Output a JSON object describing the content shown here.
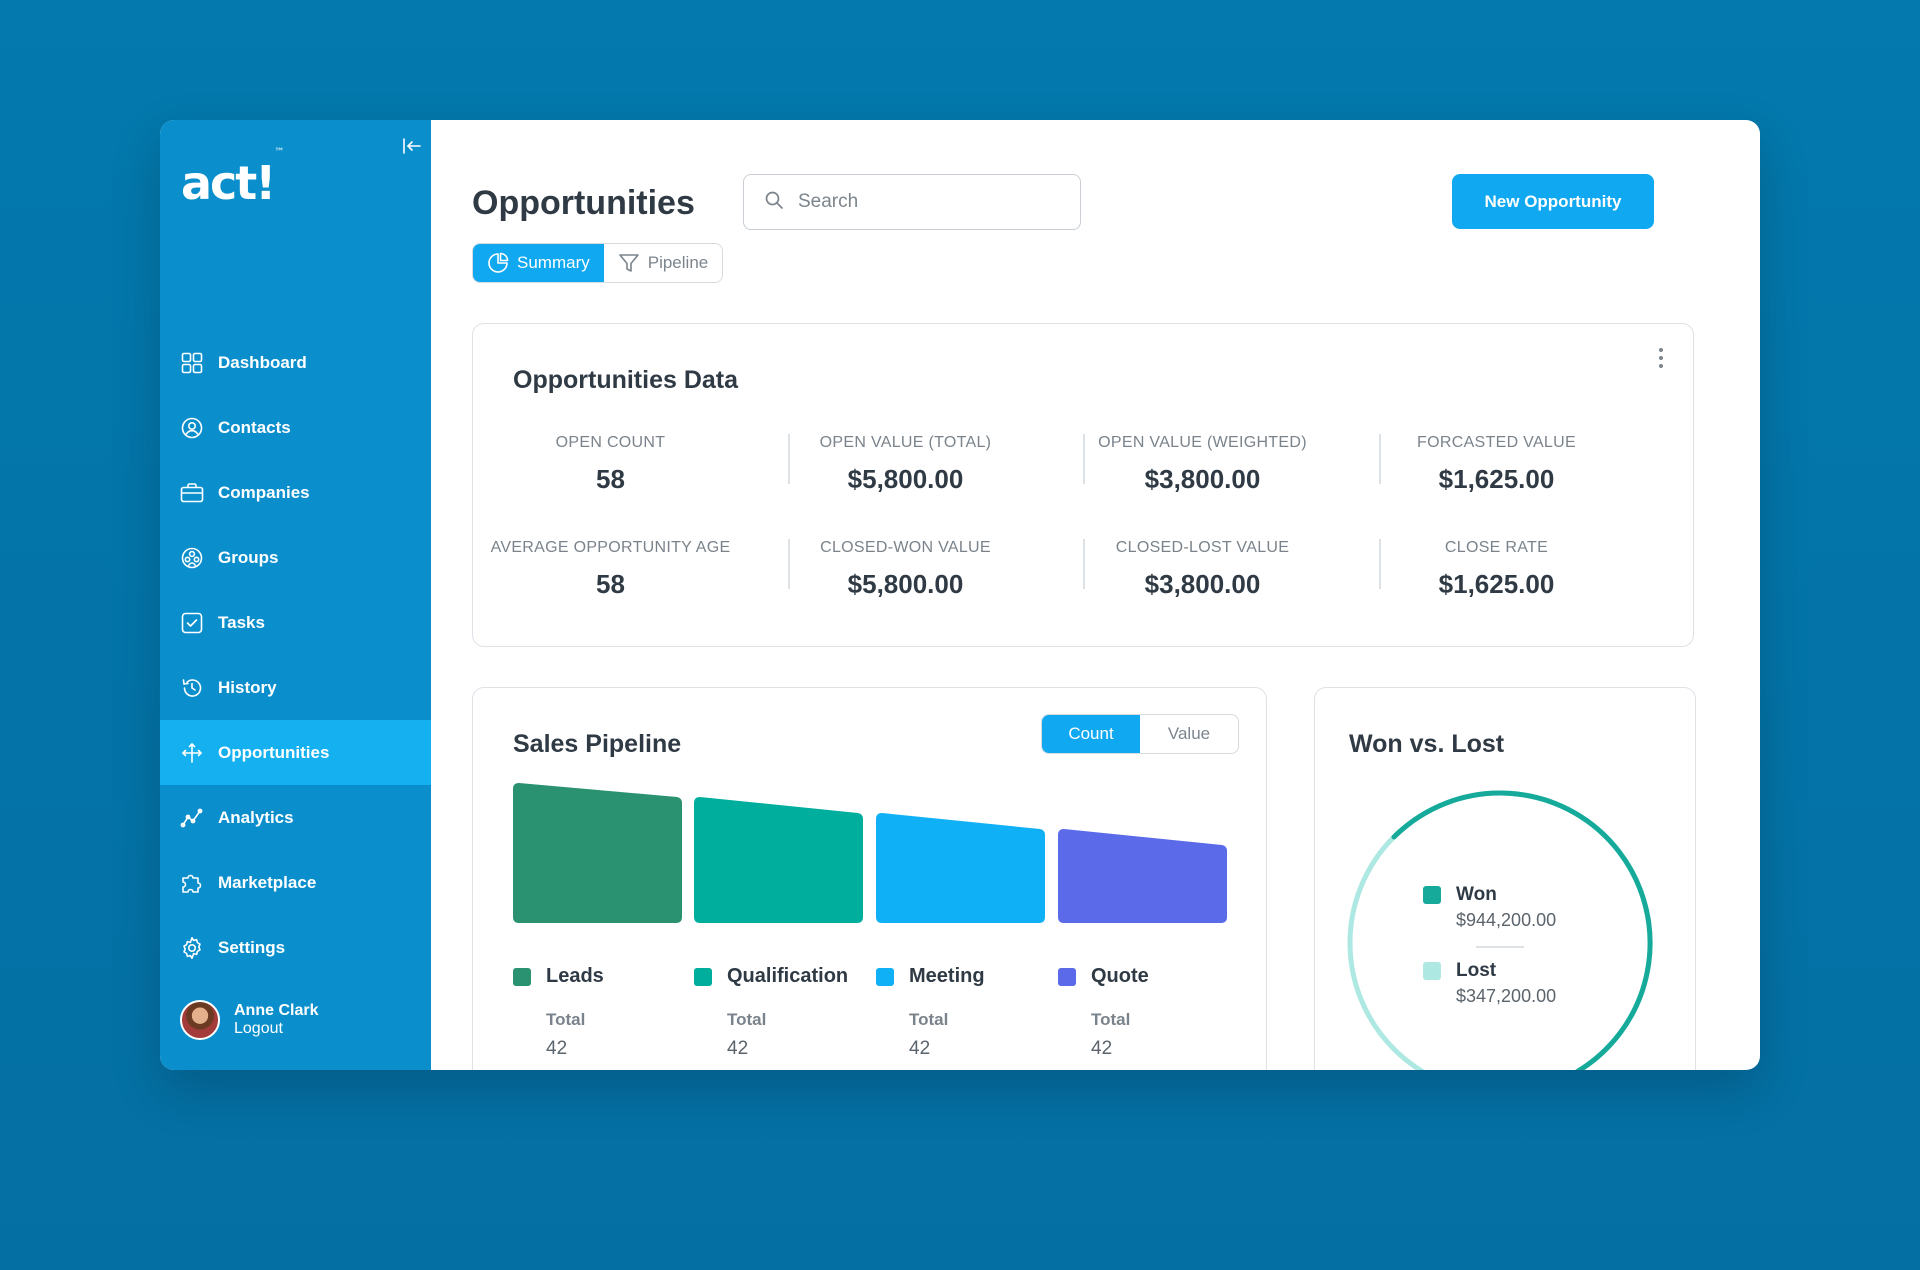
{
  "app": {
    "logo_text": "act!",
    "logo_tm": "™"
  },
  "sidebar": {
    "items": [
      {
        "label": "Dashboard",
        "icon": "dashboard-icon"
      },
      {
        "label": "Contacts",
        "icon": "contacts-icon"
      },
      {
        "label": "Companies",
        "icon": "companies-icon"
      },
      {
        "label": "Groups",
        "icon": "groups-icon"
      },
      {
        "label": "Tasks",
        "icon": "tasks-icon"
      },
      {
        "label": "History",
        "icon": "history-icon"
      },
      {
        "label": "Opportunities",
        "icon": "opportunities-icon",
        "active": true
      },
      {
        "label": "Analytics",
        "icon": "analytics-icon"
      },
      {
        "label": "Marketplace",
        "icon": "marketplace-icon"
      },
      {
        "label": "Settings",
        "icon": "settings-icon"
      }
    ],
    "user": {
      "name": "Anne Clark",
      "logout": "Logout"
    }
  },
  "header": {
    "title": "Opportunities",
    "search_placeholder": "Search",
    "new_button": "New Opportunity",
    "tabs": [
      {
        "label": "Summary",
        "active": true
      },
      {
        "label": "Pipeline",
        "active": false
      }
    ]
  },
  "opportunities_data": {
    "title": "Opportunities Data",
    "stats": [
      {
        "label": "OPEN COUNT",
        "value": "58"
      },
      {
        "label": "OPEN VALUE (TOTAL)",
        "value": "$5,800.00"
      },
      {
        "label": "OPEN VALUE (WEIGHTED)",
        "value": "$3,800.00"
      },
      {
        "label": "FORCASTED VALUE",
        "value": "$1,625.00"
      },
      {
        "label": "AVERAGE OPPORTUNITY AGE",
        "value": "58"
      },
      {
        "label": "CLOSED-WON VALUE",
        "value": "$5,800.00"
      },
      {
        "label": "CLOSED-LOST VALUE",
        "value": "$3,800.00"
      },
      {
        "label": "CLOSE RATE",
        "value": "$1,625.00"
      }
    ]
  },
  "sales_pipeline": {
    "title": "Sales Pipeline",
    "toggle": [
      {
        "label": "Count",
        "active": true
      },
      {
        "label": "Value",
        "active": false
      }
    ],
    "total_label": "Total",
    "stages": [
      {
        "name": "Leads",
        "total": "42",
        "color": "#2a9171"
      },
      {
        "name": "Qualification",
        "total": "42",
        "color": "#00ae9e"
      },
      {
        "name": "Meeting",
        "total": "42",
        "color": "#0fb0f5"
      },
      {
        "name": "Quote",
        "total": "42",
        "color": "#5a6ae8"
      }
    ]
  },
  "won_vs_lost": {
    "title": "Won vs. Lost",
    "items": [
      {
        "name": "Won",
        "value": "$944,200.00",
        "color": "#15aa9a"
      },
      {
        "name": "Lost",
        "value": "$347,200.00",
        "color": "#aee8e2"
      }
    ]
  }
}
